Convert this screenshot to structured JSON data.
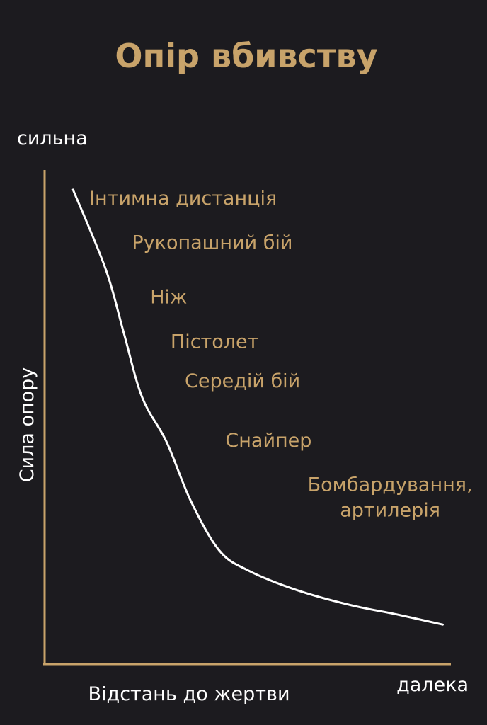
{
  "colors": {
    "background": "#1c1b1f",
    "accent": "#c8a36a",
    "curve": "#ffffff",
    "axis_text": "#ffffff"
  },
  "chart_data": {
    "type": "line",
    "title": "Опір вбивству",
    "xlabel": "Відстань до жертви",
    "ylabel": "Сила опору",
    "y_top_label": "сильна",
    "x_right_label": "далека",
    "xlim": [
      0,
      100
    ],
    "ylim": [
      0,
      100
    ],
    "grid": false,
    "series": [
      {
        "values": [
          {
            "x": 7,
            "y": 96
          },
          {
            "x": 15,
            "y": 80
          },
          {
            "x": 19.5,
            "y": 67
          },
          {
            "x": 24,
            "y": 54
          },
          {
            "x": 30,
            "y": 45
          },
          {
            "x": 36,
            "y": 33
          },
          {
            "x": 43,
            "y": 23
          },
          {
            "x": 50,
            "y": 19
          },
          {
            "x": 62,
            "y": 15
          },
          {
            "x": 75,
            "y": 12
          },
          {
            "x": 87,
            "y": 10
          },
          {
            "x": 98,
            "y": 8
          }
        ]
      }
    ],
    "annotations": [
      {
        "lines": [
          "Інтимна дистанція"
        ],
        "x": 11,
        "y": 93
      },
      {
        "lines": [
          "Рукопашний бій"
        ],
        "x": 21.5,
        "y": 84
      },
      {
        "lines": [
          "Ніж"
        ],
        "x": 26,
        "y": 73
      },
      {
        "lines": [
          "Пістолет"
        ],
        "x": 31,
        "y": 64
      },
      {
        "lines": [
          "Середій бій"
        ],
        "x": 34.5,
        "y": 56
      },
      {
        "lines": [
          "Снайпер"
        ],
        "x": 44.5,
        "y": 44
      },
      {
        "lines": [
          "Бомбардування,",
          "артилерія"
        ],
        "x": 65,
        "y": 35
      }
    ]
  }
}
